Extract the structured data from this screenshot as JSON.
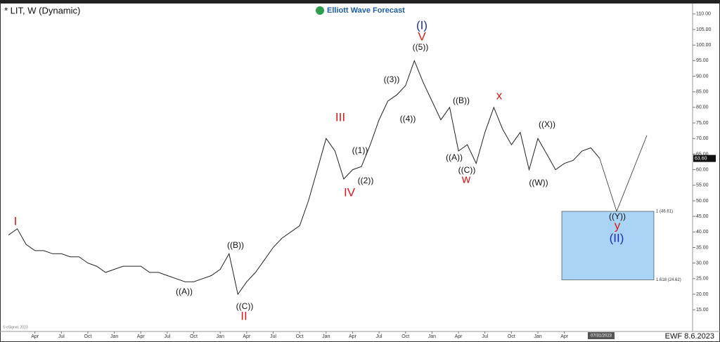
{
  "chart_data": {
    "type": "line",
    "title": "* LIT, W (Dynamic)",
    "brand": "Elliott Wave Forecast",
    "footer": "EWF 8.6.2023",
    "source": "© eSignal, 2023",
    "date_label": "07/31/2023",
    "last_price": {
      "value": 63.6,
      "label": "63.60"
    },
    "categories": [
      null,
      null,
      null,
      "Apr",
      null,
      null,
      "Jul",
      null,
      null,
      "Oct",
      null,
      null,
      "Jan",
      null,
      null,
      "Apr",
      null,
      null,
      "Jul",
      null,
      null,
      "Oct",
      null,
      null,
      "Jan",
      null,
      null,
      "Apr",
      null,
      null,
      "Jul",
      null,
      null,
      "Oct",
      null,
      null,
      "Jan",
      null,
      null,
      "Apr",
      null,
      null,
      "Jul",
      null,
      null,
      "Oct",
      null,
      null,
      "Jan",
      null,
      null,
      "Apr",
      null,
      null,
      "Jul",
      null,
      null,
      "Oct",
      null,
      null,
      "Jan",
      null,
      null,
      "Apr",
      null,
      null,
      null,
      null
    ],
    "series": [
      {
        "name": "LIT",
        "color": "#222222",
        "values": [
          39,
          41,
          36,
          34,
          34,
          33,
          33,
          32,
          32,
          30,
          29,
          27,
          28,
          29,
          29,
          29,
          27,
          27,
          26,
          25,
          24,
          24,
          25,
          26,
          28,
          33,
          20,
          24,
          27,
          31,
          35,
          38,
          40,
          42,
          50,
          60,
          70,
          66,
          57,
          60,
          61,
          68,
          76,
          82,
          84,
          87,
          95,
          88,
          82,
          76,
          80,
          66,
          68,
          62,
          72,
          80,
          73,
          68,
          72,
          60,
          70,
          65,
          60,
          62,
          63,
          66,
          67,
          63.6
        ]
      }
    ],
    "projection": [
      46.61,
      71
    ],
    "target_zone": {
      "top": 46.61,
      "bottom": 24.62,
      "top_label": "1 (46.61)",
      "bottom_label": "1.618 (24.62)",
      "color": "#a9d4f5"
    },
    "ylim": [
      13,
      112
    ],
    "yticks": [
      {
        "value": 15,
        "label": "15.00"
      },
      {
        "value": 20,
        "label": "20.00"
      },
      {
        "value": 25,
        "label": "25.00"
      },
      {
        "value": 30,
        "label": "30.00"
      },
      {
        "value": 35,
        "label": "35.00"
      },
      {
        "value": 40,
        "label": "40.00"
      },
      {
        "value": 45,
        "label": "45.00"
      },
      {
        "value": 50,
        "label": "50.00"
      },
      {
        "value": 55,
        "label": "55.00"
      },
      {
        "value": 60,
        "label": "60.00"
      },
      {
        "value": 65,
        "label": "65.00"
      },
      {
        "value": 70,
        "label": "70.00"
      },
      {
        "value": 75,
        "label": "75.00"
      },
      {
        "value": 80,
        "label": "80.00"
      },
      {
        "value": 85,
        "label": "85.00"
      },
      {
        "value": 90,
        "label": "90.00"
      },
      {
        "value": 95,
        "label": "95.00"
      },
      {
        "value": 100,
        "label": "100.00"
      },
      {
        "value": 105,
        "label": "105.00"
      },
      {
        "value": 110,
        "label": "110.00"
      }
    ],
    "annotations": [
      {
        "text": "I",
        "color": "#d7191c"
      },
      {
        "text": "((A))",
        "color": "#111111"
      },
      {
        "text": "((B))",
        "color": "#111111"
      },
      {
        "text": "((C))",
        "color": "#111111"
      },
      {
        "text": "II",
        "color": "#d7191c"
      },
      {
        "text": "III",
        "color": "#d7191c"
      },
      {
        "text": "IV",
        "color": "#d7191c"
      },
      {
        "text": "((1))",
        "color": "#111111"
      },
      {
        "text": "((2))",
        "color": "#111111"
      },
      {
        "text": "((3))",
        "color": "#111111"
      },
      {
        "text": "((4))",
        "color": "#111111"
      },
      {
        "text": "((5))",
        "color": "#111111"
      },
      {
        "text": "V",
        "color": "#d7191c"
      },
      {
        "text": "(I)",
        "color": "#1c2fa8"
      },
      {
        "text": "((A))",
        "color": "#111111"
      },
      {
        "text": "((B))",
        "color": "#111111"
      },
      {
        "text": "((C))",
        "color": "#111111"
      },
      {
        "text": "w",
        "color": "#d7191c"
      },
      {
        "text": "x",
        "color": "#d7191c"
      },
      {
        "text": "((W))",
        "color": "#111111"
      },
      {
        "text": "((X))",
        "color": "#111111"
      },
      {
        "text": "((Y))",
        "color": "#111111"
      },
      {
        "text": "y",
        "color": "#d7191c"
      },
      {
        "text": "(II)",
        "color": "#1c2fa8"
      }
    ]
  }
}
